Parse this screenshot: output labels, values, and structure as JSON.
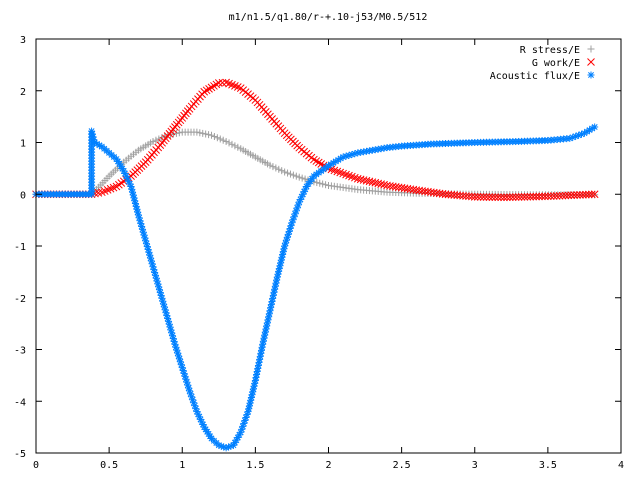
{
  "chart_data": {
    "type": "scatter",
    "title": "m1/n1.5/q1.80/r-+.10-j53/M0.5/512",
    "xlabel": "",
    "ylabel": "",
    "xlim": [
      0,
      4
    ],
    "ylim": [
      -5,
      3
    ],
    "xticks": [
      "0",
      "0.5",
      "1",
      "1.5",
      "2",
      "2.5",
      "3",
      "3.5",
      "4"
    ],
    "yticks": [
      "3",
      "2",
      "1",
      "0",
      "-1",
      "-2",
      "-3",
      "-4",
      "-5"
    ],
    "grid": false,
    "legend_position": "top-right",
    "x_max": 3.82,
    "series": [
      {
        "name": "R stress/E",
        "marker": "plus",
        "color": "#a0a0a0",
        "points": [
          [
            0.0,
            0.0
          ],
          [
            0.38,
            0.0
          ],
          [
            0.4,
            0.05
          ],
          [
            0.5,
            0.35
          ],
          [
            0.6,
            0.62
          ],
          [
            0.7,
            0.85
          ],
          [
            0.8,
            1.02
          ],
          [
            0.9,
            1.14
          ],
          [
            1.0,
            1.2
          ],
          [
            1.1,
            1.2
          ],
          [
            1.2,
            1.14
          ],
          [
            1.3,
            1.02
          ],
          [
            1.4,
            0.88
          ],
          [
            1.5,
            0.72
          ],
          [
            1.6,
            0.56
          ],
          [
            1.7,
            0.43
          ],
          [
            1.8,
            0.33
          ],
          [
            1.9,
            0.24
          ],
          [
            2.0,
            0.17
          ],
          [
            2.2,
            0.09
          ],
          [
            2.4,
            0.04
          ],
          [
            2.6,
            0.02
          ],
          [
            3.0,
            0.0
          ],
          [
            3.4,
            -0.01
          ],
          [
            3.82,
            -0.01
          ]
        ]
      },
      {
        "name": "G work/E",
        "marker": "cross",
        "color": "#ff0000",
        "points": [
          [
            0.0,
            0.0
          ],
          [
            0.38,
            0.0
          ],
          [
            0.45,
            0.04
          ],
          [
            0.55,
            0.15
          ],
          [
            0.65,
            0.35
          ],
          [
            0.75,
            0.62
          ],
          [
            0.85,
            0.95
          ],
          [
            0.95,
            1.3
          ],
          [
            1.05,
            1.65
          ],
          [
            1.15,
            1.98
          ],
          [
            1.25,
            2.15
          ],
          [
            1.3,
            2.16
          ],
          [
            1.4,
            2.05
          ],
          [
            1.5,
            1.82
          ],
          [
            1.6,
            1.5
          ],
          [
            1.7,
            1.18
          ],
          [
            1.8,
            0.9
          ],
          [
            1.9,
            0.67
          ],
          [
            2.0,
            0.5
          ],
          [
            2.2,
            0.3
          ],
          [
            2.4,
            0.17
          ],
          [
            2.6,
            0.08
          ],
          [
            2.8,
            0.0
          ],
          [
            3.0,
            -0.05
          ],
          [
            3.2,
            -0.06
          ],
          [
            3.5,
            -0.04
          ],
          [
            3.82,
            0.0
          ]
        ]
      },
      {
        "name": "Acoustic flux/E",
        "marker": "star",
        "color": "#0080ff",
        "points": [
          [
            0.0,
            0.0
          ],
          [
            0.38,
            0.0
          ],
          [
            0.38,
            1.22
          ],
          [
            0.4,
            1.0
          ],
          [
            0.45,
            0.92
          ],
          [
            0.5,
            0.8
          ],
          [
            0.55,
            0.68
          ],
          [
            0.6,
            0.45
          ],
          [
            0.65,
            0.15
          ],
          [
            0.7,
            -0.4
          ],
          [
            0.75,
            -0.9
          ],
          [
            0.8,
            -1.4
          ],
          [
            0.85,
            -1.9
          ],
          [
            0.9,
            -2.4
          ],
          [
            0.95,
            -2.9
          ],
          [
            1.0,
            -3.35
          ],
          [
            1.05,
            -3.8
          ],
          [
            1.1,
            -4.2
          ],
          [
            1.15,
            -4.5
          ],
          [
            1.2,
            -4.72
          ],
          [
            1.25,
            -4.85
          ],
          [
            1.3,
            -4.9
          ],
          [
            1.35,
            -4.85
          ],
          [
            1.4,
            -4.6
          ],
          [
            1.45,
            -4.2
          ],
          [
            1.5,
            -3.6
          ],
          [
            1.55,
            -2.9
          ],
          [
            1.6,
            -2.25
          ],
          [
            1.65,
            -1.6
          ],
          [
            1.7,
            -1.0
          ],
          [
            1.75,
            -0.55
          ],
          [
            1.8,
            -0.15
          ],
          [
            1.85,
            0.15
          ],
          [
            1.9,
            0.35
          ],
          [
            2.0,
            0.55
          ],
          [
            2.1,
            0.72
          ],
          [
            2.2,
            0.8
          ],
          [
            2.3,
            0.85
          ],
          [
            2.4,
            0.9
          ],
          [
            2.5,
            0.93
          ],
          [
            2.7,
            0.97
          ],
          [
            3.0,
            1.0
          ],
          [
            3.3,
            1.02
          ],
          [
            3.5,
            1.04
          ],
          [
            3.65,
            1.08
          ],
          [
            3.75,
            1.18
          ],
          [
            3.82,
            1.3
          ]
        ]
      }
    ]
  }
}
